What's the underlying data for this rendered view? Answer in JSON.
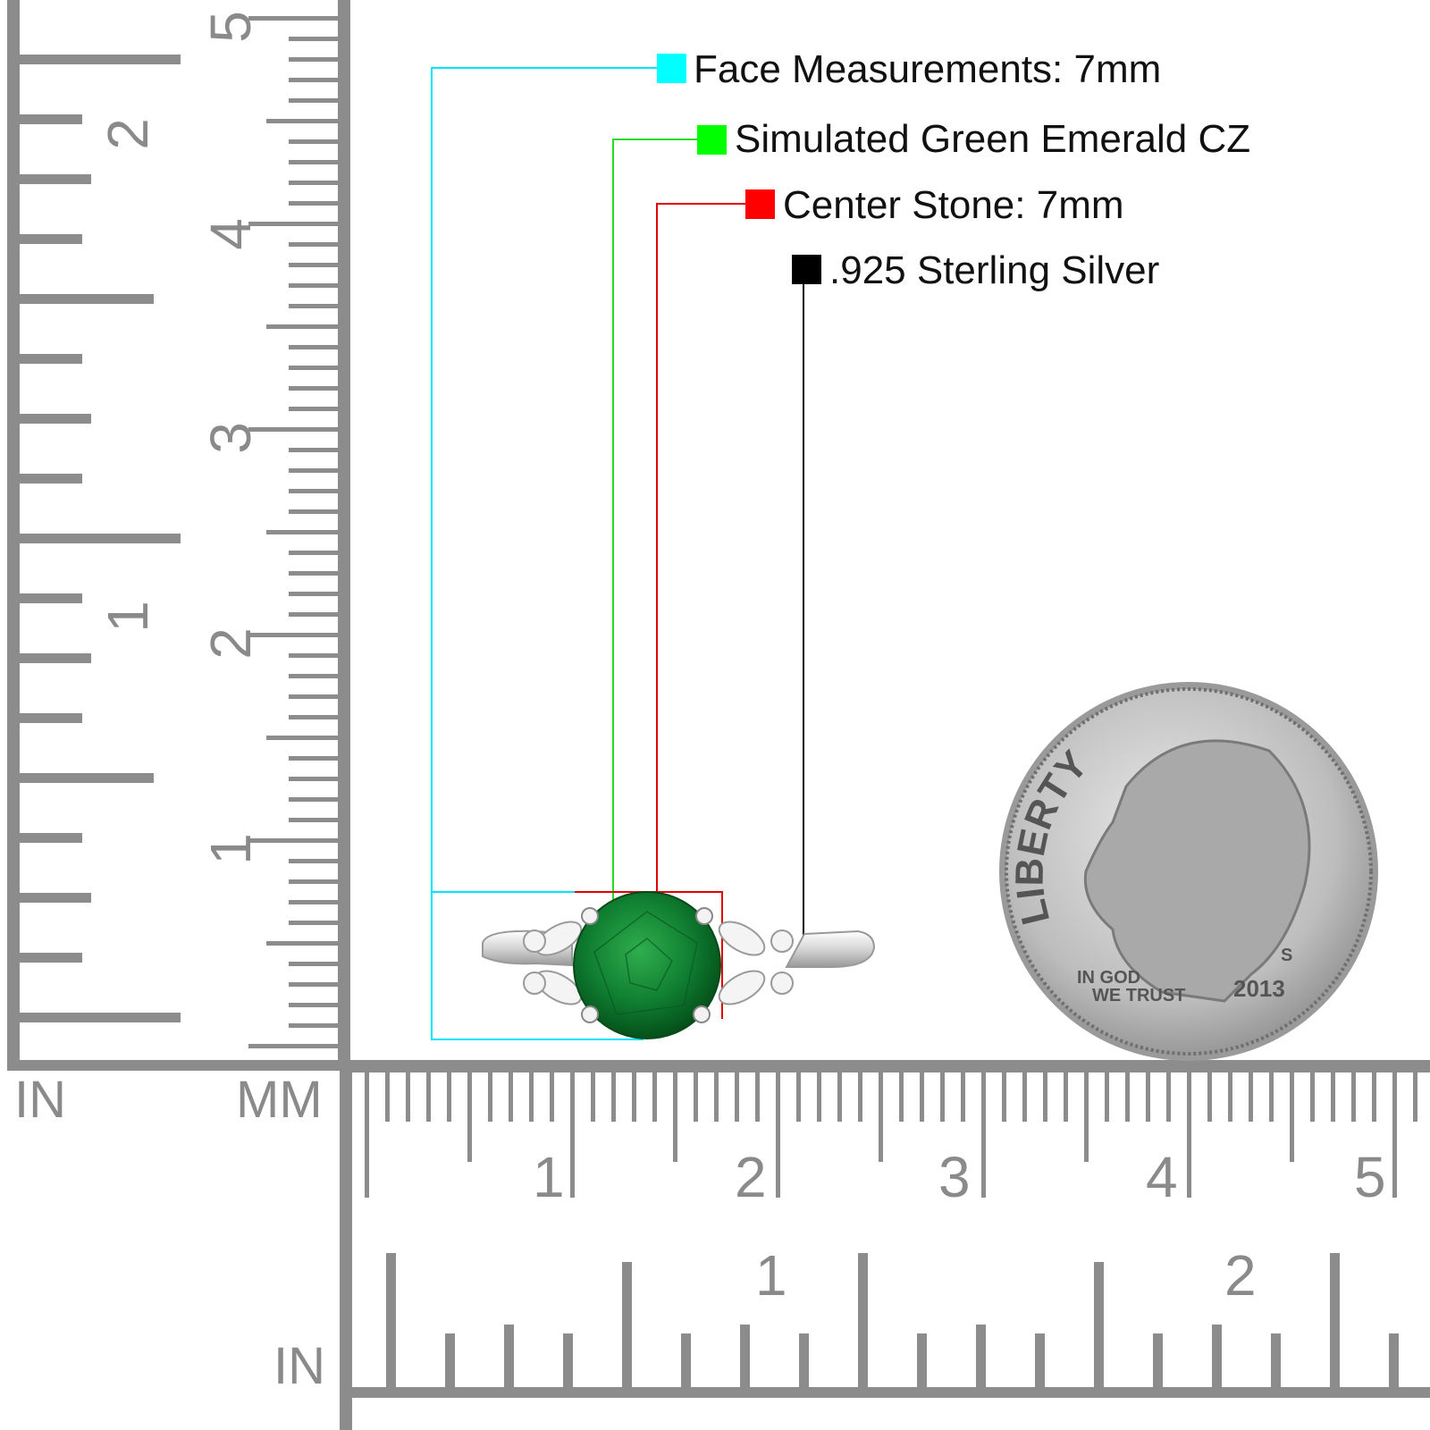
{
  "legend": {
    "items": [
      {
        "label": "Face Measurements: 7mm",
        "color": "#00ffff"
      },
      {
        "label": "Simulated Green Emerald CZ",
        "color": "#00ff00"
      },
      {
        "label": "Center Stone: 7mm",
        "color": "#ff0000"
      },
      {
        "label": ".925 Sterling Silver",
        "color": "#000000"
      }
    ]
  },
  "rulers": {
    "unit_in_left": "IN",
    "unit_mm": "MM",
    "unit_in_bottom": "IN",
    "left_mm_numbers": [
      "1",
      "2",
      "3",
      "4",
      "5"
    ],
    "left_in_numbers": [
      "1",
      "2"
    ],
    "bottom_mm_numbers": [
      "1",
      "2",
      "3",
      "4",
      "5"
    ],
    "bottom_in_numbers": [
      "1",
      "2"
    ],
    "tick_color": "#8c8c8c"
  },
  "coin": {
    "motto_top": "LIBERTY",
    "motto_bottom_1": "IN GOD",
    "motto_bottom_2": "WE TRUST",
    "year": "2013",
    "mint_mark": "S"
  },
  "product": {
    "stone_color": "#0e7a2e",
    "metal": "silver"
  }
}
